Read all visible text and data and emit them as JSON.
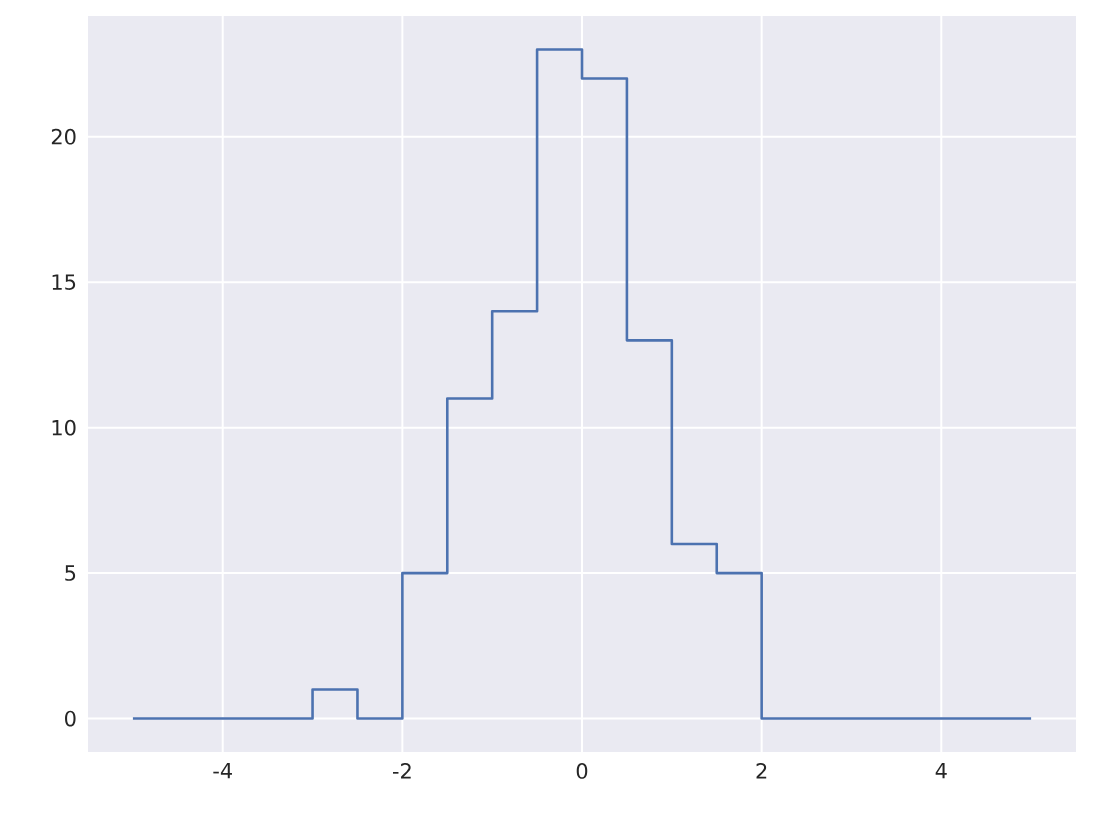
{
  "chart_data": {
    "type": "histogram",
    "bins": [
      -5,
      -4.5,
      -4,
      -3.5,
      -3,
      -2.5,
      -2,
      -1.5,
      -1,
      -0.5,
      0,
      0.5,
      1,
      1.5,
      2,
      2.5,
      3,
      3.5,
      4,
      4.5,
      5
    ],
    "values": [
      0,
      0,
      0,
      0,
      1,
      0,
      5,
      11,
      14,
      23,
      22,
      13,
      6,
      5,
      0,
      0,
      0,
      0,
      0,
      0
    ],
    "color": "#4c72b0",
    "xlim": [
      -5.5,
      5.5
    ],
    "ylim": [
      -1.15,
      24.15
    ],
    "xticks": [
      -4,
      -2,
      0,
      2,
      4
    ],
    "yticks": [
      0,
      5,
      10,
      15,
      20
    ],
    "grid": true
  }
}
